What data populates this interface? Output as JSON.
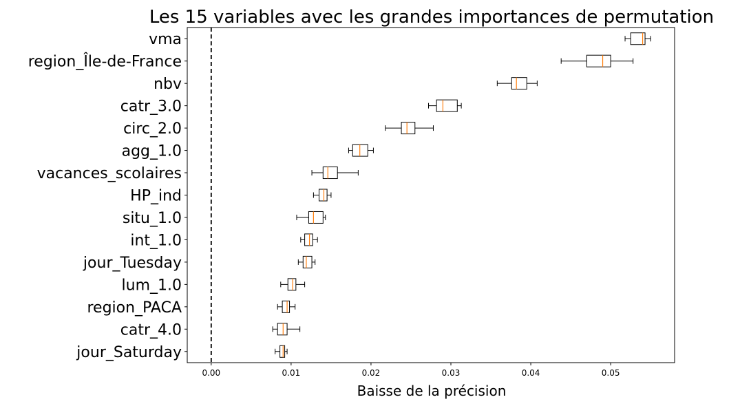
{
  "chart_data": {
    "type": "boxplot",
    "title": "Les 15 variables avec les grandes importances de permutation",
    "xlabel": "Baisse de la précision",
    "ylabel": "",
    "xlim": [
      -0.003,
      0.058
    ],
    "xticks": [
      0.0,
      0.01,
      0.02,
      0.03,
      0.04,
      0.05
    ],
    "xtick_labels": [
      "0.00",
      "0.01",
      "0.02",
      "0.03",
      "0.04",
      "0.05"
    ],
    "reference_line": {
      "x": 0.0,
      "style": "dashed",
      "color": "#000000"
    },
    "box_color": "#000000",
    "median_color": "#ff7f0e",
    "grid": false,
    "categories": [
      "vma",
      "region_Île-de-France",
      "nbv",
      "catr_3.0",
      "circ_2.0",
      "agg_1.0",
      "vacances_scolaires",
      "HP_ind",
      "situ_1.0",
      "int_1.0",
      "jour_Tuesday",
      "lum_1.0",
      "region_PACA",
      "catr_4.0",
      "jour_Saturday"
    ],
    "boxes": [
      {
        "label": "vma",
        "whisker_low": 0.0518,
        "q1": 0.0525,
        "median": 0.054,
        "q3": 0.0543,
        "whisker_high": 0.055
      },
      {
        "label": "region_Île-de-France",
        "whisker_low": 0.0438,
        "q1": 0.047,
        "median": 0.049,
        "q3": 0.05,
        "whisker_high": 0.0528
      },
      {
        "label": "nbv",
        "whisker_low": 0.0358,
        "q1": 0.0376,
        "median": 0.0382,
        "q3": 0.0395,
        "whisker_high": 0.0408
      },
      {
        "label": "catr_3.0",
        "whisker_low": 0.0272,
        "q1": 0.0282,
        "median": 0.029,
        "q3": 0.0308,
        "whisker_high": 0.0313
      },
      {
        "label": "circ_2.0",
        "whisker_low": 0.0218,
        "q1": 0.0238,
        "median": 0.0245,
        "q3": 0.0255,
        "whisker_high": 0.0278
      },
      {
        "label": "agg_1.0",
        "whisker_low": 0.0172,
        "q1": 0.0177,
        "median": 0.0186,
        "q3": 0.0196,
        "whisker_high": 0.0203
      },
      {
        "label": "vacances_scolaires",
        "whisker_low": 0.0126,
        "q1": 0.014,
        "median": 0.0146,
        "q3": 0.0158,
        "whisker_high": 0.0184
      },
      {
        "label": "HP_ind",
        "whisker_low": 0.0128,
        "q1": 0.0135,
        "median": 0.0141,
        "q3": 0.0145,
        "whisker_high": 0.015
      },
      {
        "label": "situ_1.0",
        "whisker_low": 0.0107,
        "q1": 0.0122,
        "median": 0.0128,
        "q3": 0.014,
        "whisker_high": 0.0143
      },
      {
        "label": "int_1.0",
        "whisker_low": 0.0112,
        "q1": 0.0117,
        "median": 0.0123,
        "q3": 0.0127,
        "whisker_high": 0.0133
      },
      {
        "label": "jour_Tuesday",
        "whisker_low": 0.0109,
        "q1": 0.0115,
        "median": 0.0119,
        "q3": 0.0126,
        "whisker_high": 0.013
      },
      {
        "label": "lum_1.0",
        "whisker_low": 0.0087,
        "q1": 0.0096,
        "median": 0.0102,
        "q3": 0.0106,
        "whisker_high": 0.0117
      },
      {
        "label": "region_PACA",
        "whisker_low": 0.0083,
        "q1": 0.0089,
        "median": 0.0095,
        "q3": 0.0098,
        "whisker_high": 0.0105
      },
      {
        "label": "catr_4.0",
        "whisker_low": 0.0077,
        "q1": 0.0083,
        "median": 0.009,
        "q3": 0.0095,
        "whisker_high": 0.0111
      },
      {
        "label": "jour_Saturday",
        "whisker_low": 0.008,
        "q1": 0.0086,
        "median": 0.009,
        "q3": 0.0092,
        "whisker_high": 0.0095
      }
    ]
  }
}
